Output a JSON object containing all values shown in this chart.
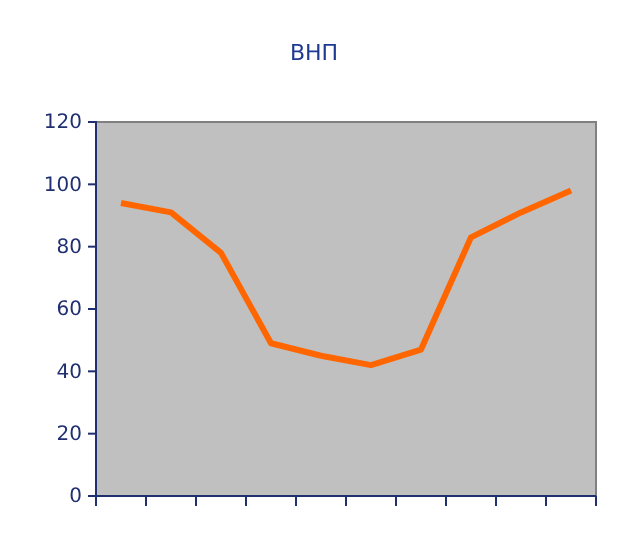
{
  "chart_data": {
    "type": "line",
    "title": "ВНП",
    "categories": [
      null,
      null,
      null,
      null,
      null,
      null,
      null,
      null,
      null,
      null
    ],
    "series": [
      {
        "color": "#ff6600",
        "values": [
          94,
          91,
          78,
          49,
          45,
          42,
          47,
          83,
          91,
          98
        ]
      }
    ],
    "ylim": [
      0,
      120
    ],
    "yticks": [
      0,
      20,
      40,
      60,
      80,
      100,
      120
    ],
    "grid": false,
    "legend": false,
    "marker": "none",
    "line_style": "solid"
  }
}
